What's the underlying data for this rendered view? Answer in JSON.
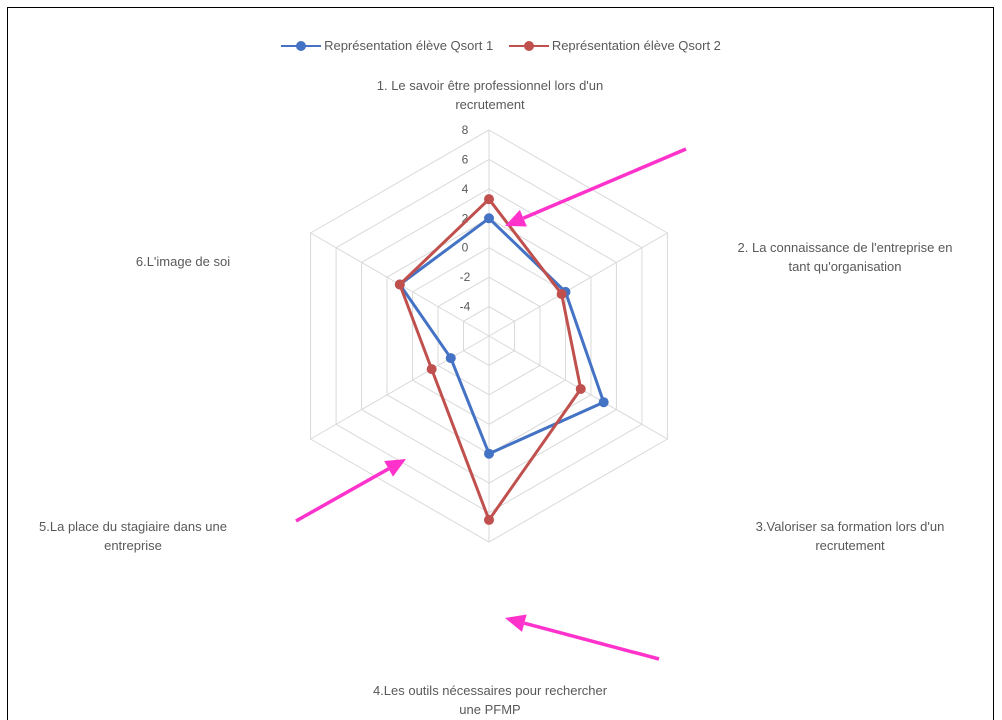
{
  "chart_data": {
    "type": "radar",
    "categories": [
      "1. Le savoir être professionnel lors d'un recrutement",
      "2. La connaissance de l'entreprise en tant qu'organisation",
      "3.Valoriser sa formation lors d'un recrutement",
      "4.Les outils nécessaires pour rechercher une PFMP",
      "5.La place du stagiaire dans une entreprise",
      "6.L'image de soi"
    ],
    "category_label_lines": [
      [
        "1. Le savoir être professionnel lors d'un",
        "recrutement"
      ],
      [
        "2. La connaissance de l'entreprise en",
        "tant qu'organisation"
      ],
      [
        "3.Valoriser sa formation lors d'un",
        "recrutement"
      ],
      [
        "4.Les outils nécessaires pour rechercher",
        "une PFMP"
      ],
      [
        "5.La place du stagiaire dans une",
        "entreprise"
      ],
      [
        "6.L'image de soi"
      ]
    ],
    "series": [
      {
        "name": "Représentation élève Qsort 1",
        "color": "#4472C4",
        "values": [
          2,
          0,
          3,
          2,
          -3,
          1
        ]
      },
      {
        "name": "Représentation élève Qsort 2",
        "color": "#C0504D",
        "values": [
          3.3,
          -0.3,
          1.2,
          6.5,
          -1.5,
          1
        ]
      }
    ],
    "rlim": [
      -6,
      8
    ],
    "ticks": [
      8,
      6,
      4,
      2,
      0,
      -2,
      -4
    ],
    "grid": true,
    "legend": "top-center",
    "annotation_color": "#FF33CC"
  }
}
